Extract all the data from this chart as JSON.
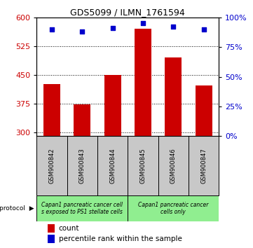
{
  "title": "GDS5099 / ILMN_1761594",
  "samples": [
    "GSM900842",
    "GSM900843",
    "GSM900844",
    "GSM900845",
    "GSM900846",
    "GSM900847"
  ],
  "counts": [
    425,
    372,
    449,
    570,
    495,
    422
  ],
  "percentile_ranks": [
    90,
    88,
    91,
    95,
    92,
    90
  ],
  "ylim_left": [
    290,
    600
  ],
  "ylim_right": [
    0,
    100
  ],
  "yticks_left": [
    300,
    375,
    450,
    525,
    600
  ],
  "yticks_right": [
    0,
    25,
    50,
    75,
    100
  ],
  "bar_color": "#cc0000",
  "dot_color": "#0000cc",
  "bar_width": 0.55,
  "protocol_group1_label": "Capan1 pancreatic cancer cell\ns exposed to PS1 stellate cells",
  "protocol_group2_label": "Capan1 pancreatic cancer\ncells only",
  "protocol_color": "#90ee90",
  "sample_cell_color": "#c8c8c8",
  "protocol_label": "protocol",
  "legend_count_label": "count",
  "legend_pct_label": "percentile rank within the sample",
  "bg_color": "#ffffff",
  "tick_label_color_left": "#cc0000",
  "tick_label_color_right": "#0000cc",
  "title_fontsize": 9,
  "tick_fontsize": 8,
  "sample_fontsize": 6,
  "proto_fontsize": 5.5,
  "legend_fontsize": 7.5
}
